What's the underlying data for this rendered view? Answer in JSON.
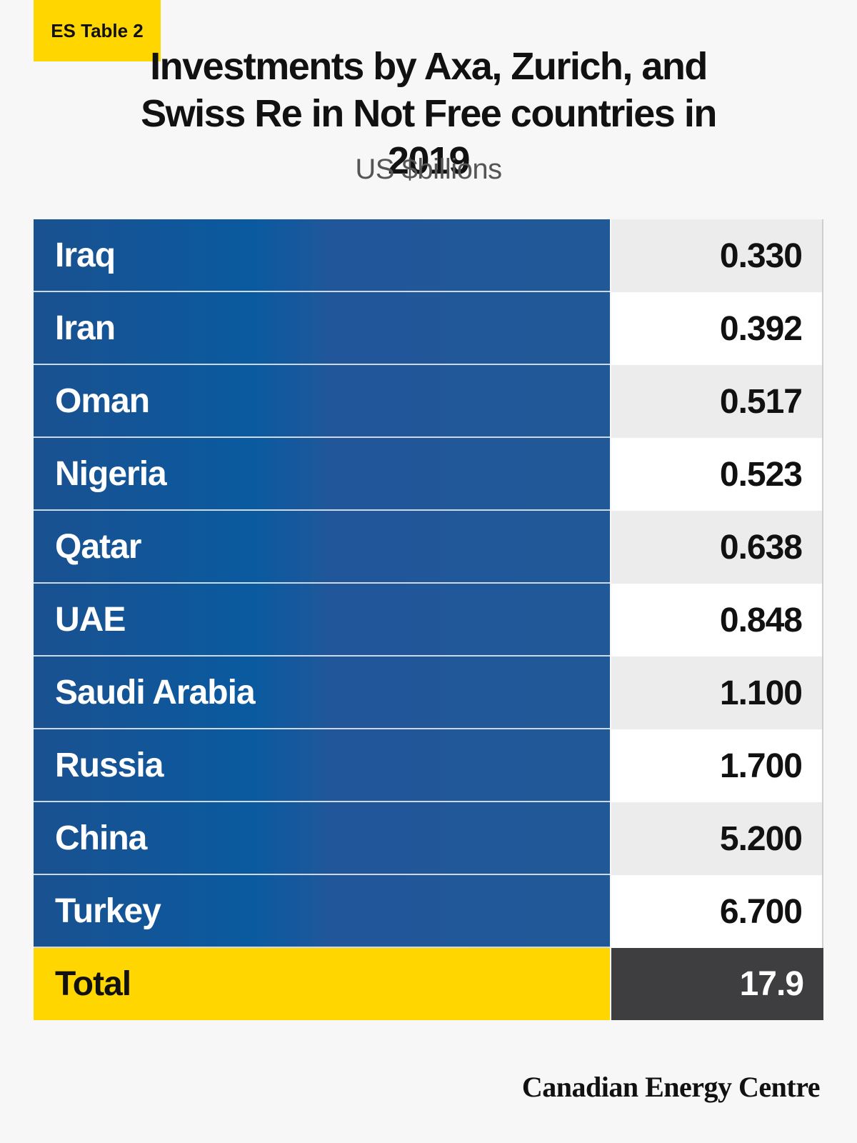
{
  "badge": "ES Table 2",
  "chart_data": {
    "type": "table",
    "title": "Investments by Axa, Zurich, and Swiss Re in Not Free countries in 2019",
    "title_lines": [
      "Investments by Axa, Zurich, and",
      "Swiss Re in Not Free countries in 2019"
    ],
    "subtitle": "US $billions",
    "rows": [
      {
        "country": "Iraq",
        "value": "0.330"
      },
      {
        "country": "Iran",
        "value": "0.392"
      },
      {
        "country": "Oman",
        "value": "0.517"
      },
      {
        "country": "Nigeria",
        "value": "0.523"
      },
      {
        "country": "Qatar",
        "value": "0.638"
      },
      {
        "country": "UAE",
        "value": "0.848"
      },
      {
        "country": "Saudi Arabia",
        "value": "1.100"
      },
      {
        "country": "Russia",
        "value": "1.700"
      },
      {
        "country": "China",
        "value": "5.200"
      },
      {
        "country": "Turkey",
        "value": "6.700"
      }
    ],
    "total": {
      "label": "Total",
      "value": "17.9"
    }
  },
  "footer": "Canadian Energy Centre",
  "colors": {
    "label_blue": "#1e5a9c",
    "accent_yellow": "#ffd600",
    "total_dark": "#3e3e40",
    "row_gray": "#ececec",
    "row_white": "#ffffff"
  }
}
